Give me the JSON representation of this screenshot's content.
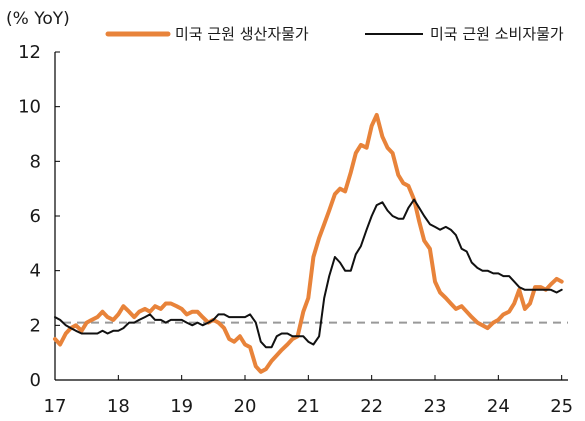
{
  "chart_data": {
    "type": "line",
    "unit_label": "(% YoY)",
    "x_tick_labels": [
      "17",
      "18",
      "19",
      "20",
      "21",
      "22",
      "23",
      "24",
      "25"
    ],
    "y_tick_labels": [
      "0",
      "2",
      "4",
      "6",
      "8",
      "10",
      "12"
    ],
    "xlim": [
      2017.0,
      2025.1
    ],
    "ylim": [
      0,
      12
    ],
    "grid": false,
    "legend_position": "top",
    "reference_line": {
      "y": 2.1,
      "style": "dashed",
      "color": "#999999"
    },
    "series": [
      {
        "name": "미국 근원 생산자물가",
        "color": "#E8833A",
        "x": [
          2017.0,
          2017.08,
          2017.17,
          2017.25,
          2017.33,
          2017.42,
          2017.5,
          2017.58,
          2017.67,
          2017.75,
          2017.83,
          2017.92,
          2018.0,
          2018.08,
          2018.17,
          2018.25,
          2018.33,
          2018.42,
          2018.5,
          2018.58,
          2018.67,
          2018.75,
          2018.83,
          2018.92,
          2019.0,
          2019.08,
          2019.17,
          2019.25,
          2019.33,
          2019.42,
          2019.5,
          2019.58,
          2019.67,
          2019.75,
          2019.83,
          2019.92,
          2020.0,
          2020.08,
          2020.17,
          2020.25,
          2020.33,
          2020.42,
          2020.5,
          2020.58,
          2020.67,
          2020.75,
          2020.83,
          2020.92,
          2021.0,
          2021.08,
          2021.17,
          2021.25,
          2021.33,
          2021.42,
          2021.5,
          2021.58,
          2021.67,
          2021.75,
          2021.83,
          2021.92,
          2022.0,
          2022.08,
          2022.17,
          2022.25,
          2022.33,
          2022.42,
          2022.5,
          2022.58,
          2022.67,
          2022.75,
          2022.83,
          2022.92,
          2023.0,
          2023.08,
          2023.17,
          2023.25,
          2023.33,
          2023.42,
          2023.5,
          2023.58,
          2023.67,
          2023.75,
          2023.83,
          2023.92,
          2024.0,
          2024.08,
          2024.17,
          2024.25,
          2024.33,
          2024.42,
          2024.5,
          2024.58,
          2024.67,
          2024.75,
          2024.83,
          2024.92,
          2025.0
        ],
        "values": [
          1.5,
          1.3,
          1.7,
          1.9,
          2.0,
          1.8,
          2.1,
          2.2,
          2.3,
          2.5,
          2.3,
          2.2,
          2.4,
          2.7,
          2.5,
          2.3,
          2.5,
          2.6,
          2.5,
          2.7,
          2.6,
          2.8,
          2.8,
          2.7,
          2.6,
          2.4,
          2.5,
          2.5,
          2.3,
          2.1,
          2.2,
          2.1,
          1.9,
          1.5,
          1.4,
          1.6,
          1.3,
          1.2,
          0.5,
          0.3,
          0.4,
          0.7,
          0.9,
          1.1,
          1.3,
          1.5,
          1.6,
          2.5,
          3.0,
          4.5,
          5.2,
          5.7,
          6.2,
          6.8,
          7.0,
          6.9,
          7.6,
          8.3,
          8.6,
          8.5,
          9.3,
          9.7,
          8.9,
          8.5,
          8.3,
          7.5,
          7.2,
          7.1,
          6.6,
          5.8,
          5.1,
          4.8,
          3.6,
          3.2,
          3.0,
          2.8,
          2.6,
          2.7,
          2.5,
          2.3,
          2.1,
          2.0,
          1.9,
          2.1,
          2.2,
          2.4,
          2.5,
          2.8,
          3.3,
          2.6,
          2.8,
          3.4,
          3.4,
          3.3,
          3.5,
          3.7,
          3.6
        ]
      },
      {
        "name": "미국 근원 소비자물가",
        "color": "#111111",
        "x": [
          2017.0,
          2017.08,
          2017.17,
          2017.25,
          2017.33,
          2017.42,
          2017.5,
          2017.58,
          2017.67,
          2017.75,
          2017.83,
          2017.92,
          2018.0,
          2018.08,
          2018.17,
          2018.25,
          2018.33,
          2018.42,
          2018.5,
          2018.58,
          2018.67,
          2018.75,
          2018.83,
          2018.92,
          2019.0,
          2019.08,
          2019.17,
          2019.25,
          2019.33,
          2019.42,
          2019.5,
          2019.58,
          2019.67,
          2019.75,
          2019.83,
          2019.92,
          2020.0,
          2020.08,
          2020.17,
          2020.25,
          2020.33,
          2020.42,
          2020.5,
          2020.58,
          2020.67,
          2020.75,
          2020.83,
          2020.92,
          2021.0,
          2021.08,
          2021.17,
          2021.25,
          2021.33,
          2021.42,
          2021.5,
          2021.58,
          2021.67,
          2021.75,
          2021.83,
          2021.92,
          2022.0,
          2022.08,
          2022.17,
          2022.25,
          2022.33,
          2022.42,
          2022.5,
          2022.58,
          2022.67,
          2022.75,
          2022.83,
          2022.92,
          2023.0,
          2023.08,
          2023.17,
          2023.25,
          2023.33,
          2023.42,
          2023.5,
          2023.58,
          2023.67,
          2023.75,
          2023.83,
          2023.92,
          2024.0,
          2024.08,
          2024.17,
          2024.25,
          2024.33,
          2024.42,
          2024.5,
          2024.58,
          2024.67,
          2024.75,
          2024.83,
          2024.92,
          2025.0
        ],
        "values": [
          2.3,
          2.2,
          2.0,
          1.9,
          1.8,
          1.7,
          1.7,
          1.7,
          1.7,
          1.8,
          1.7,
          1.8,
          1.8,
          1.9,
          2.1,
          2.1,
          2.2,
          2.3,
          2.4,
          2.2,
          2.2,
          2.1,
          2.2,
          2.2,
          2.2,
          2.1,
          2.0,
          2.1,
          2.0,
          2.1,
          2.2,
          2.4,
          2.4,
          2.3,
          2.3,
          2.3,
          2.3,
          2.4,
          2.1,
          1.4,
          1.2,
          1.2,
          1.6,
          1.7,
          1.7,
          1.6,
          1.6,
          1.6,
          1.4,
          1.3,
          1.6,
          3.0,
          3.8,
          4.5,
          4.3,
          4.0,
          4.0,
          4.6,
          4.9,
          5.5,
          6.0,
          6.4,
          6.5,
          6.2,
          6.0,
          5.9,
          5.9,
          6.3,
          6.6,
          6.3,
          6.0,
          5.7,
          5.6,
          5.5,
          5.6,
          5.5,
          5.3,
          4.8,
          4.7,
          4.3,
          4.1,
          4.0,
          4.0,
          3.9,
          3.9,
          3.8,
          3.8,
          3.6,
          3.4,
          3.3,
          3.3,
          3.3,
          3.3,
          3.3,
          3.3,
          3.2,
          3.3
        ]
      }
    ]
  }
}
